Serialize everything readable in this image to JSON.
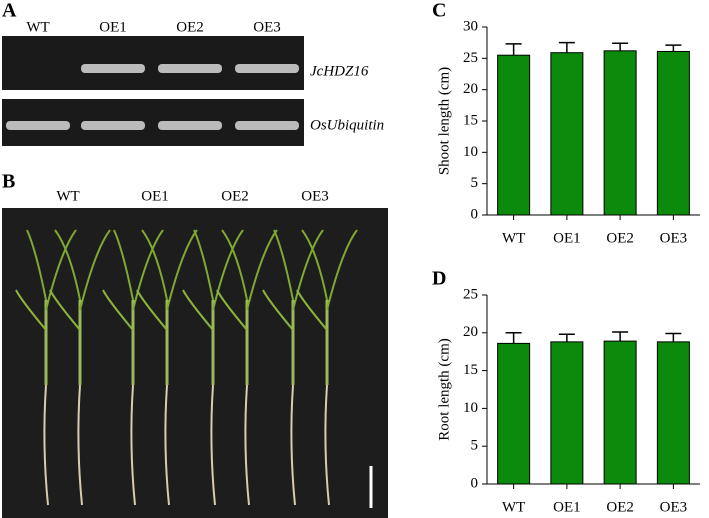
{
  "gel": {
    "panel": "A",
    "lanes": [
      "WT",
      "OE1",
      "OE2",
      "OE3"
    ],
    "genes": [
      "JcHDZ16",
      "OsUbiquitin"
    ]
  },
  "photo": {
    "panel": "B",
    "lines": [
      "WT",
      "OE1",
      "OE2",
      "OE3"
    ]
  },
  "chart_data": [
    {
      "type": "bar",
      "panel": "C",
      "y_label": "Shoot length (cm)",
      "categories": [
        "WT",
        "OE1",
        "OE2",
        "OE3"
      ],
      "series": [
        {
          "color": "#0b8a0b",
          "values": [
            25.5,
            25.9,
            26.2,
            26.1
          ],
          "errors": [
            1.8,
            1.6,
            1.2,
            1.0
          ]
        }
      ],
      "ylim": [
        0,
        30
      ],
      "yticks": [
        0,
        5,
        10,
        15,
        20,
        25,
        30
      ]
    },
    {
      "type": "bar",
      "panel": "D",
      "y_label": "Root length (cm)",
      "categories": [
        "WT",
        "OE1",
        "OE2",
        "OE3"
      ],
      "series": [
        {
          "color": "#0b8a0b",
          "values": [
            18.6,
            18.8,
            18.9,
            18.8
          ],
          "errors": [
            1.4,
            1.0,
            1.2,
            1.1
          ]
        }
      ],
      "ylim": [
        0,
        25
      ],
      "yticks": [
        0,
        5,
        10,
        15,
        20,
        25
      ]
    }
  ]
}
